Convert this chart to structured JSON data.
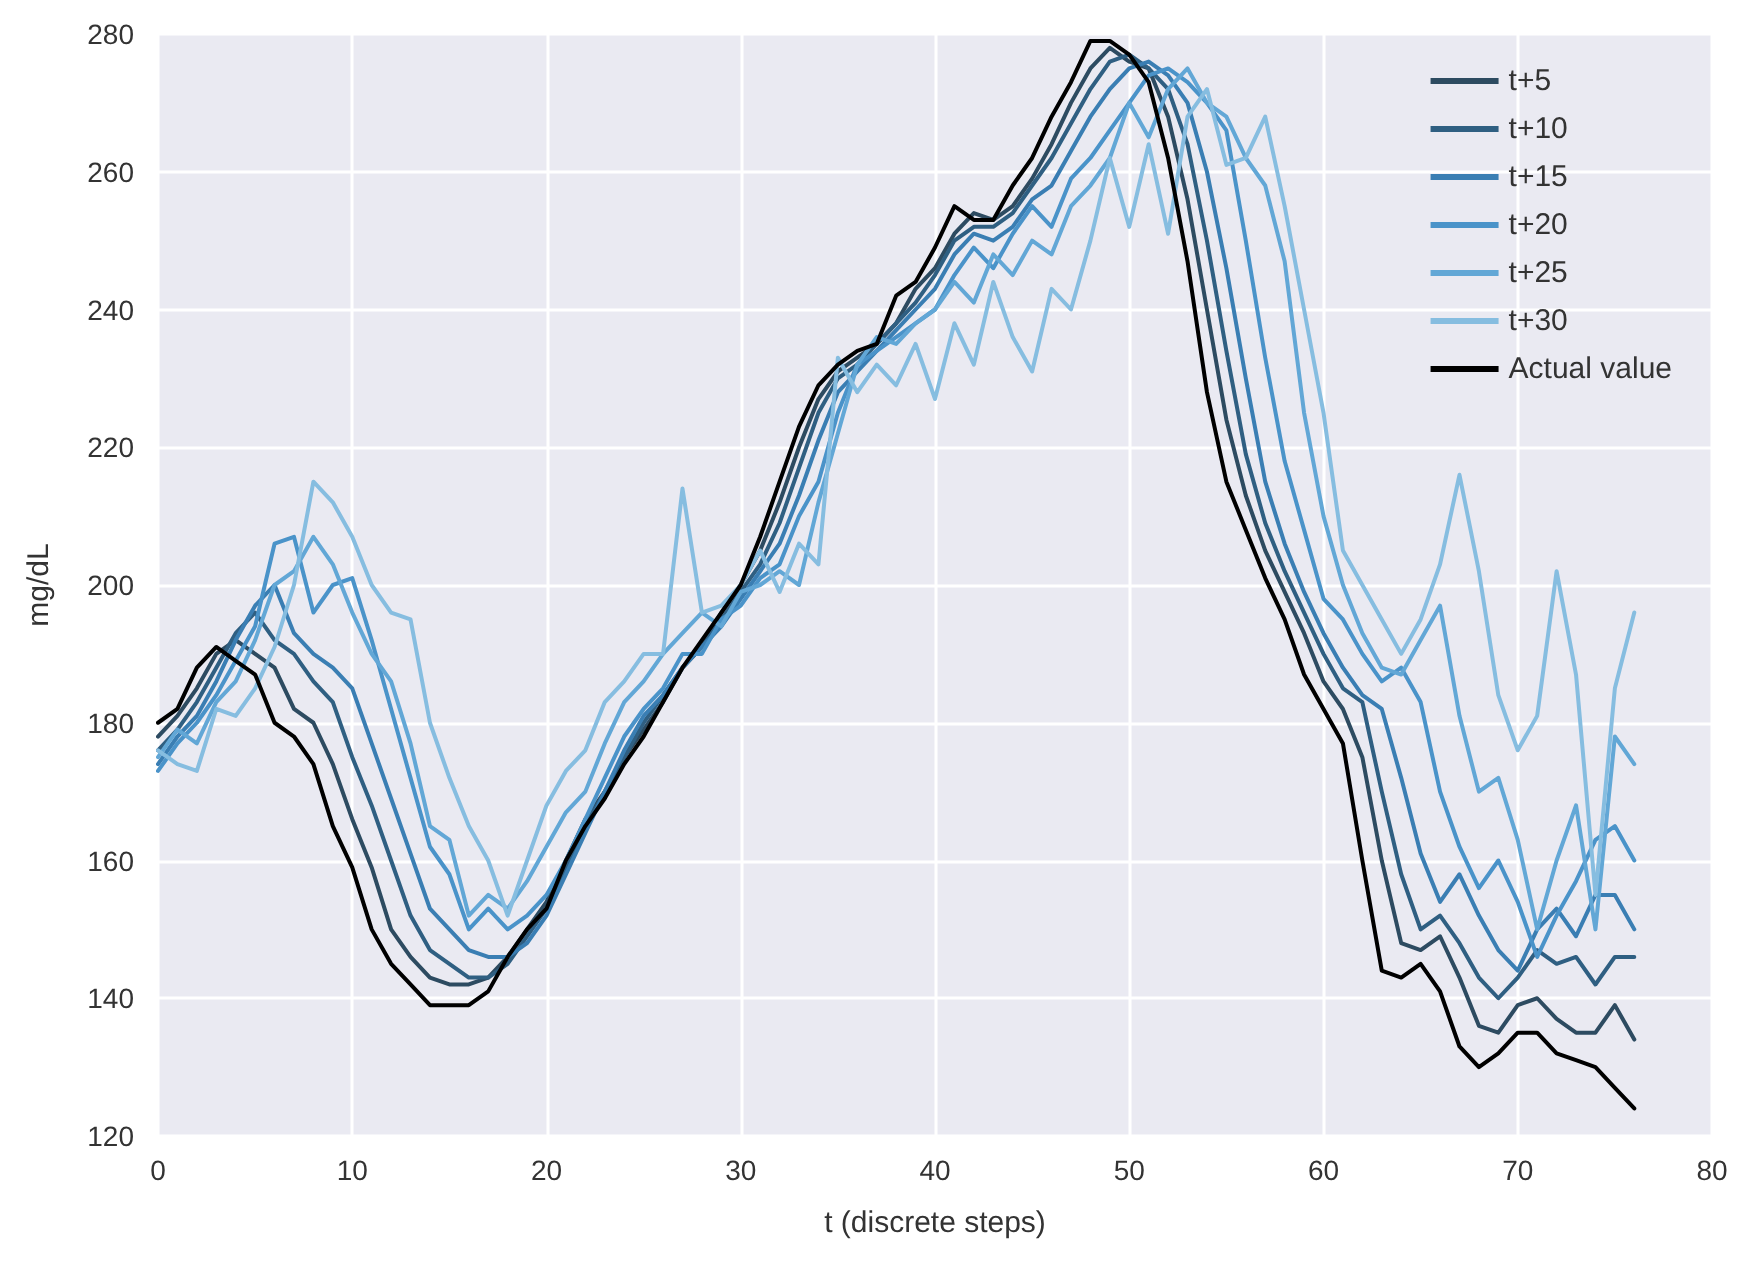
{
  "chart_data": {
    "type": "line",
    "xlabel": "t (discrete steps)",
    "ylabel": "mg/dL",
    "xlim": [
      0,
      80
    ],
    "xticks": [
      0,
      10,
      20,
      30,
      40,
      50,
      60,
      70,
      80
    ],
    "ylim": [
      120,
      280
    ],
    "yticks": [
      120,
      140,
      160,
      180,
      200,
      220,
      240,
      260,
      280
    ],
    "grid": true,
    "legend": "top right",
    "marker": "none",
    "line_style": "solid",
    "x": [
      0,
      1,
      2,
      3,
      4,
      5,
      6,
      7,
      8,
      9,
      10,
      11,
      12,
      13,
      14,
      15,
      16,
      17,
      18,
      19,
      20,
      21,
      22,
      23,
      24,
      25,
      26,
      27,
      28,
      29,
      30,
      31,
      32,
      33,
      34,
      35,
      36,
      37,
      38,
      39,
      40,
      41,
      42,
      43,
      44,
      45,
      46,
      47,
      48,
      49,
      50,
      51,
      52,
      53,
      54,
      55,
      56,
      57,
      58,
      59,
      60,
      61,
      62,
      63,
      64,
      65,
      66,
      67,
      68,
      69,
      70,
      71,
      72,
      73,
      74,
      75,
      76
    ],
    "series": [
      {
        "name": "t+5",
        "color": "#2d4b61",
        "values": [
          178,
          181,
          185,
          190,
          192,
          190,
          188,
          182,
          180,
          174,
          166,
          159,
          150,
          146,
          143,
          142,
          142,
          143,
          146,
          150,
          154,
          160,
          166,
          170,
          175,
          179,
          183,
          188,
          191,
          196,
          200,
          205,
          212,
          220,
          227,
          231,
          233,
          235,
          238,
          243,
          246,
          251,
          254,
          253,
          255,
          259,
          264,
          270,
          275,
          278,
          276,
          275,
          268,
          256,
          240,
          224,
          213,
          205,
          199,
          193,
          186,
          182,
          175,
          160,
          148,
          147,
          149,
          143,
          136,
          135,
          139,
          140,
          137,
          135,
          135,
          139,
          134
        ]
      },
      {
        "name": "t+10",
        "color": "#2f5f82",
        "values": [
          176,
          179,
          183,
          188,
          193,
          196,
          192,
          190,
          186,
          183,
          175,
          168,
          160,
          152,
          147,
          145,
          143,
          143,
          145,
          149,
          153,
          159,
          165,
          170,
          175,
          180,
          184,
          188,
          191,
          195,
          199,
          203,
          209,
          217,
          225,
          230,
          232,
          235,
          238,
          241,
          245,
          250,
          252,
          252,
          254,
          258,
          262,
          267,
          272,
          276,
          277,
          275,
          272,
          264,
          250,
          234,
          219,
          209,
          202,
          196,
          190,
          185,
          183,
          170,
          158,
          150,
          152,
          148,
          143,
          140,
          143,
          147,
          145,
          146,
          142,
          146,
          146
        ]
      },
      {
        "name": "t+15",
        "color": "#3a7eb3",
        "values": [
          174,
          178,
          181,
          186,
          192,
          197,
          200,
          193,
          190,
          188,
          185,
          177,
          169,
          161,
          153,
          150,
          147,
          146,
          146,
          148,
          152,
          158,
          164,
          170,
          176,
          181,
          184,
          188,
          191,
          194,
          198,
          202,
          206,
          213,
          221,
          228,
          231,
          234,
          237,
          240,
          243,
          248,
          251,
          250,
          252,
          256,
          258,
          263,
          268,
          272,
          275,
          276,
          274,
          270,
          260,
          246,
          230,
          215,
          206,
          199,
          193,
          188,
          184,
          182,
          172,
          161,
          154,
          158,
          152,
          147,
          144,
          150,
          153,
          149,
          155,
          155,
          150
        ]
      },
      {
        "name": "t+20",
        "color": "#4a93c9",
        "values": [
          173,
          177,
          180,
          184,
          189,
          194,
          206,
          207,
          196,
          200,
          201,
          192,
          182,
          172,
          162,
          158,
          150,
          153,
          150,
          152,
          155,
          160,
          166,
          172,
          178,
          182,
          185,
          190,
          190,
          195,
          197,
          201,
          203,
          210,
          215,
          225,
          232,
          234,
          236,
          238,
          240,
          245,
          249,
          246,
          251,
          255,
          252,
          259,
          262,
          266,
          270,
          274,
          275,
          273,
          270,
          266,
          250,
          233,
          218,
          208,
          198,
          195,
          190,
          186,
          188,
          183,
          170,
          162,
          156,
          160,
          154,
          146,
          152,
          157,
          163,
          165,
          160
        ]
      },
      {
        "name": "t+25",
        "color": "#62a7d6",
        "values": [
          175,
          179,
          177,
          183,
          186,
          192,
          200,
          202,
          207,
          203,
          196,
          190,
          186,
          177,
          165,
          163,
          152,
          155,
          153,
          157,
          162,
          167,
          170,
          177,
          183,
          186,
          190,
          193,
          196,
          194,
          199,
          200,
          202,
          200,
          212,
          222,
          232,
          236,
          235,
          238,
          240,
          244,
          241,
          248,
          245,
          250,
          248,
          255,
          258,
          262,
          270,
          265,
          272,
          275,
          270,
          268,
          262,
          258,
          247,
          225,
          210,
          200,
          193,
          188,
          187,
          192,
          197,
          181,
          170,
          172,
          163,
          150,
          160,
          168,
          150,
          178,
          174
        ]
      },
      {
        "name": "t+30",
        "color": "#86bde0",
        "values": [
          176,
          174,
          173,
          182,
          181,
          185,
          191,
          200,
          215,
          212,
          207,
          200,
          196,
          195,
          180,
          172,
          165,
          160,
          152,
          160,
          168,
          173,
          176,
          183,
          186,
          190,
          190,
          214,
          196,
          197,
          200,
          205,
          199,
          206,
          203,
          233,
          228,
          232,
          229,
          235,
          227,
          238,
          232,
          244,
          236,
          231,
          243,
          240,
          250,
          262,
          252,
          264,
          251,
          268,
          272,
          261,
          262,
          268,
          255,
          240,
          225,
          205,
          200,
          195,
          190,
          195,
          203,
          216,
          202,
          184,
          176,
          181,
          202,
          187,
          155,
          185,
          196
        ]
      },
      {
        "name": "Actual value",
        "color": "#000000",
        "values": [
          180,
          182,
          188,
          191,
          189,
          187,
          180,
          178,
          174,
          165,
          159,
          150,
          145,
          142,
          139,
          139,
          139,
          141,
          146,
          150,
          153,
          160,
          165,
          169,
          174,
          178,
          183,
          188,
          192,
          196,
          200,
          207,
          215,
          223,
          229,
          232,
          234,
          235,
          242,
          244,
          249,
          255,
          253,
          253,
          258,
          262,
          268,
          273,
          279,
          279,
          277,
          273,
          262,
          247,
          228,
          215,
          208,
          201,
          195,
          187,
          182,
          177,
          160,
          144,
          143,
          145,
          141,
          133,
          130,
          132,
          135,
          135,
          132,
          131,
          130,
          127,
          124
        ]
      }
    ]
  }
}
